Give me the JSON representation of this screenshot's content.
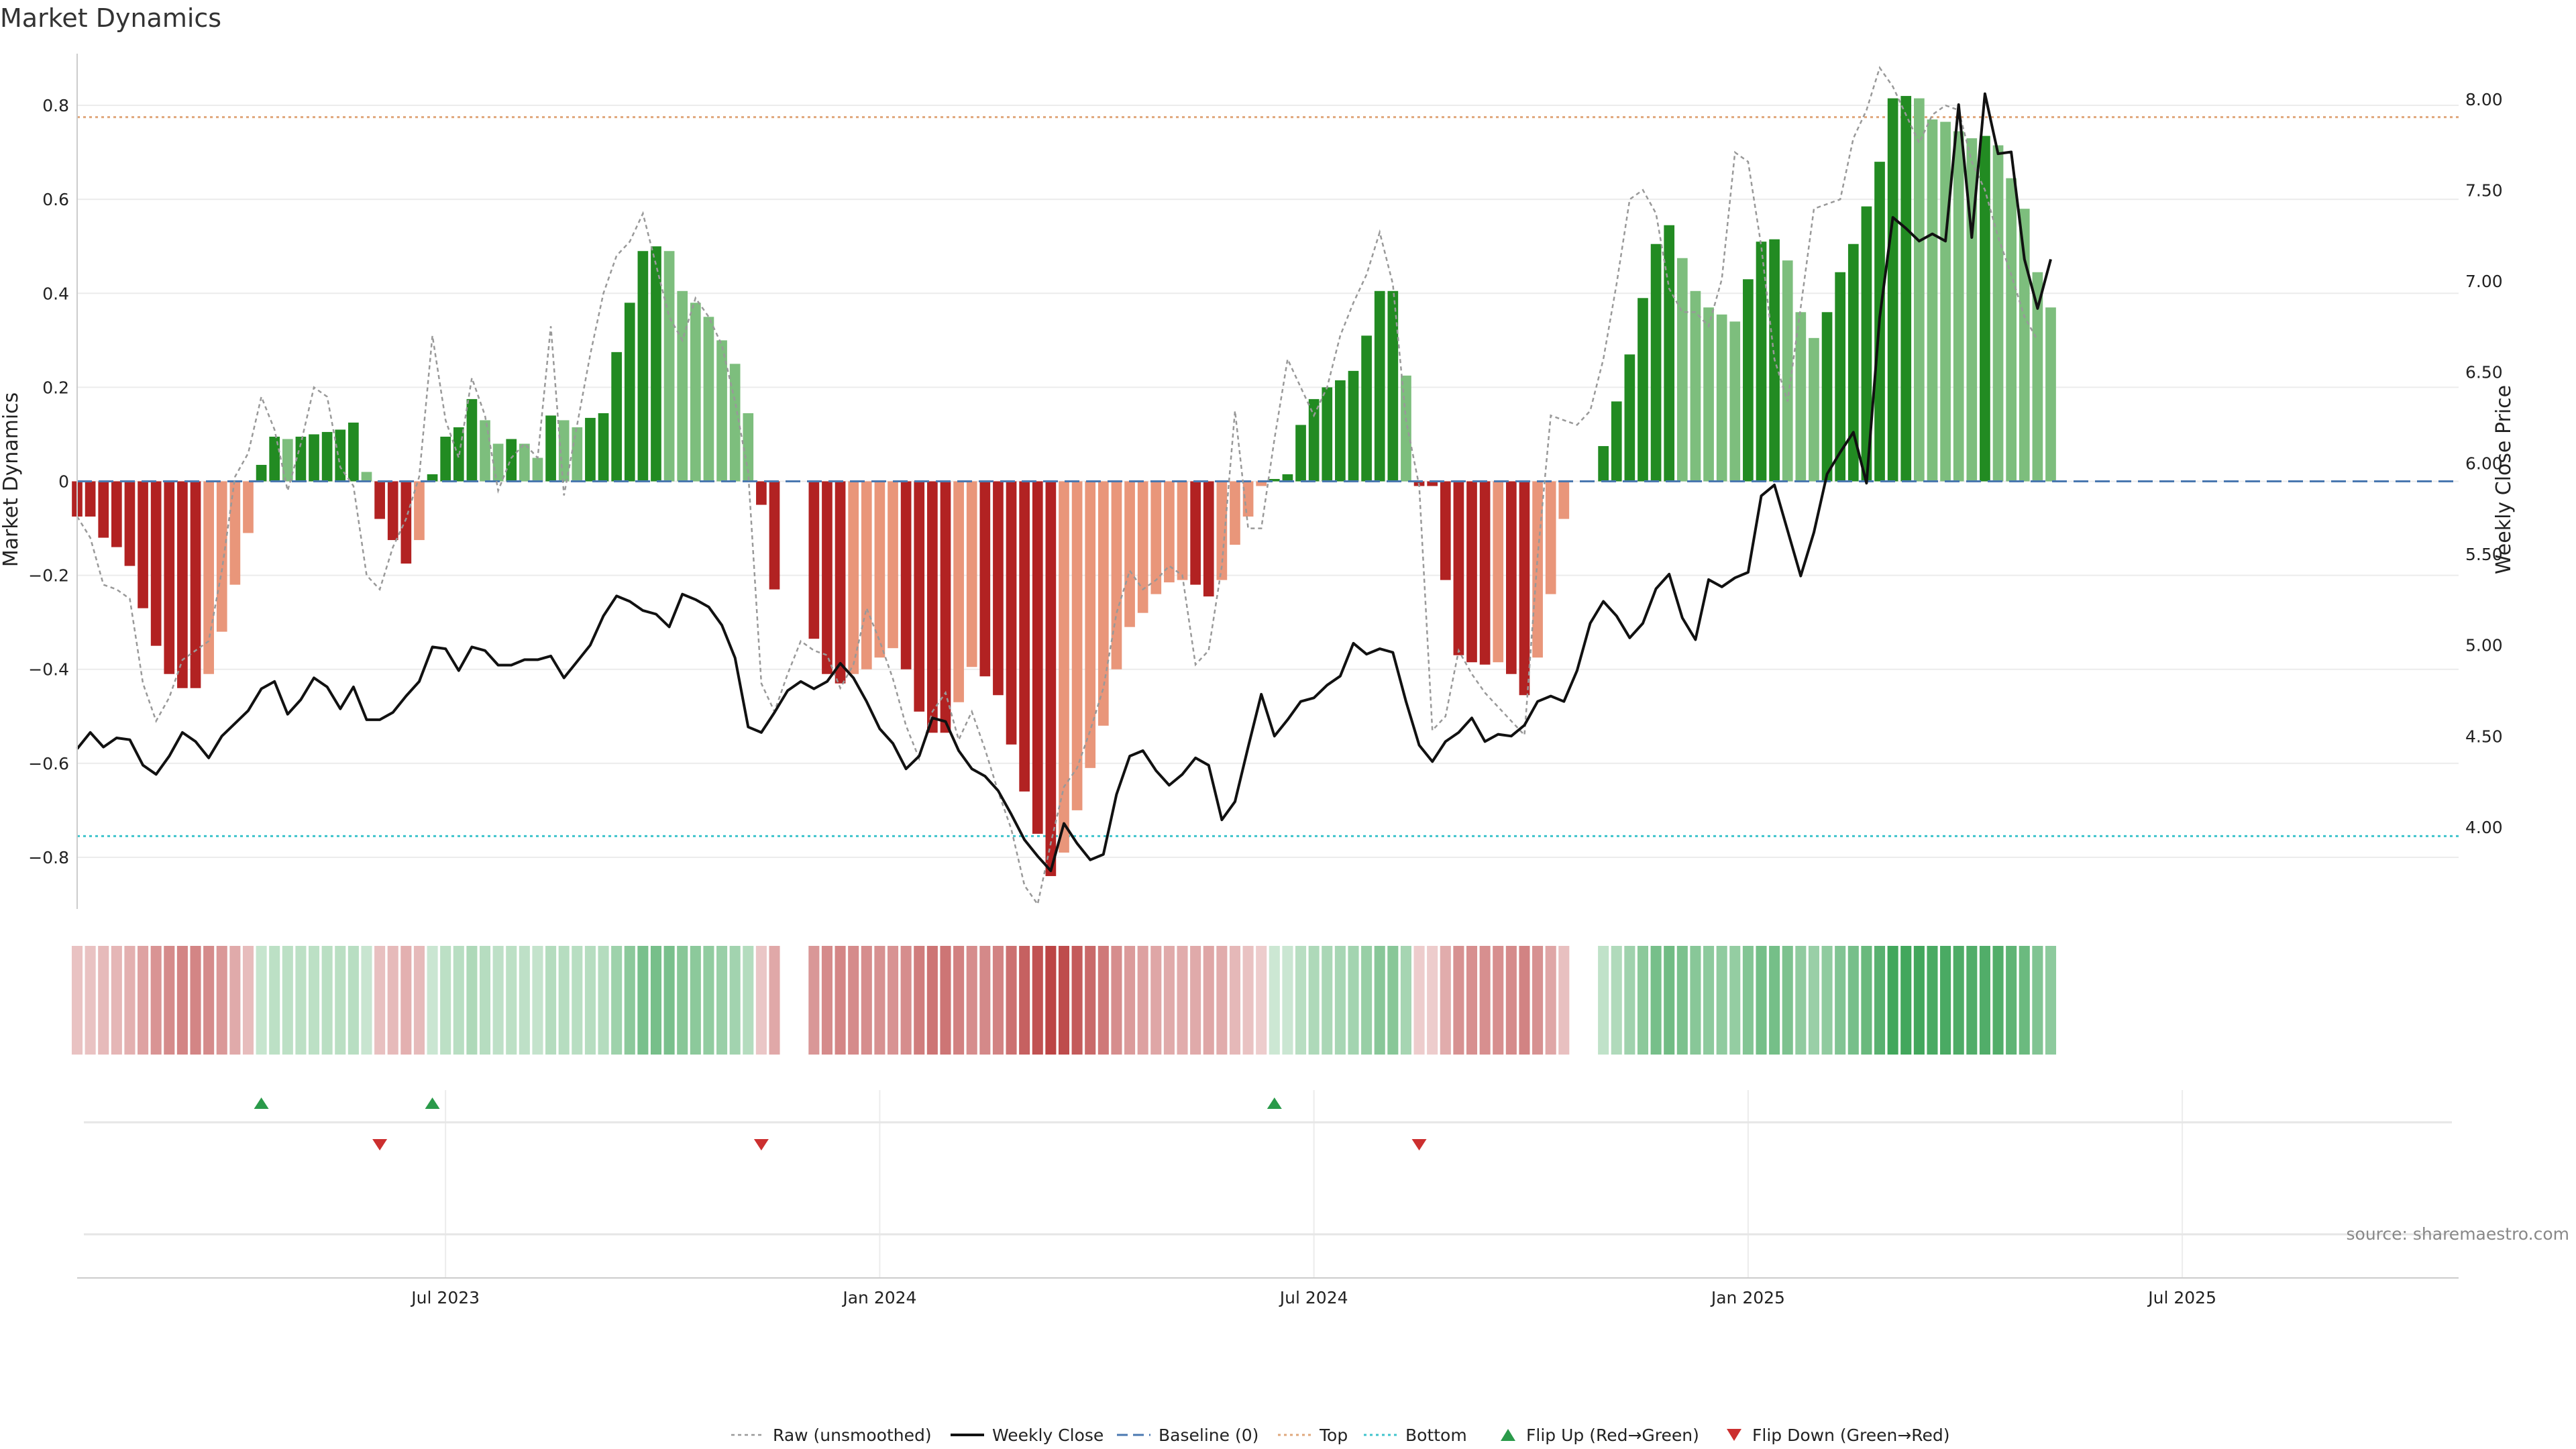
{
  "chart_data": {
    "type": "bar",
    "title": "Market Dynamics",
    "ylabel_left": "Market Dynamics",
    "ylabel_right": "Weekly Close Price",
    "ylim_left": [
      -0.91,
      0.91
    ],
    "ylim_right": [
      3.55,
      8.25
    ],
    "yticks_left": [
      0.8,
      0.6,
      0.4,
      0.2,
      0,
      -0.2,
      -0.4,
      -0.6,
      -0.8
    ],
    "ytick_labels_left": [
      "0.8",
      "0.6",
      "0.4",
      "0.2",
      "0",
      "−0.2",
      "−0.4",
      "−0.6",
      "−0.8"
    ],
    "yticks_right": [
      8.0,
      7.5,
      7.0,
      6.5,
      6.0,
      5.5,
      5.0,
      4.5,
      4.0
    ],
    "ytick_labels_right": [
      "8.00",
      "7.50",
      "7.00",
      "6.50",
      "6.00",
      "5.50",
      "5.00",
      "4.50",
      "4.00"
    ],
    "x_axis": {
      "start_week": 0,
      "weeks": 182
    },
    "xticks": [
      {
        "label": "Jul 2023",
        "week": 28
      },
      {
        "label": "Jan 2024",
        "week": 61
      },
      {
        "label": "Jul 2024",
        "week": 94
      },
      {
        "label": "Jan 2025",
        "week": 127
      },
      {
        "label": "Jul 2025",
        "week": 160
      }
    ],
    "top_threshold": 0.775,
    "bottom_threshold": -0.755,
    "baseline": 0,
    "bars": [
      -0.075,
      -0.075,
      -0.12,
      -0.14,
      -0.18,
      -0.27,
      -0.35,
      -0.41,
      -0.44,
      -0.44,
      -0.41,
      -0.32,
      -0.22,
      -0.11,
      0.035,
      0.095,
      0.09,
      0.095,
      0.1,
      0.105,
      0.11,
      0.125,
      0.02,
      -0.08,
      -0.125,
      -0.175,
      -0.125,
      0.015,
      0.095,
      0.115,
      0.175,
      0.13,
      0.08,
      0.09,
      0.08,
      0.05,
      0.14,
      0.13,
      0.115,
      0.135,
      0.145,
      0.275,
      0.38,
      0.49,
      0.5,
      0.49,
      0.405,
      0.38,
      0.35,
      0.3,
      0.25,
      0.145,
      -0.05,
      -0.23,
      0,
      0,
      -0.335,
      -0.41,
      -0.43,
      -0.41,
      -0.4,
      -0.375,
      -0.355,
      -0.4,
      -0.49,
      -0.535,
      -0.535,
      -0.47,
      -0.395,
      -0.415,
      -0.455,
      -0.56,
      -0.66,
      -0.75,
      -0.84,
      -0.79,
      -0.7,
      -0.61,
      -0.52,
      -0.4,
      -0.31,
      -0.28,
      -0.24,
      -0.215,
      -0.21,
      -0.22,
      -0.245,
      -0.21,
      -0.135,
      -0.075,
      -0.01,
      0.005,
      0.015,
      0.12,
      0.175,
      0.2,
      0.215,
      0.235,
      0.31,
      0.405,
      0.405,
      0.225,
      -0.01,
      -0.01,
      -0.21,
      -0.37,
      -0.385,
      -0.39,
      -0.385,
      -0.41,
      -0.455,
      -0.375,
      -0.24,
      -0.08,
      0,
      0,
      0.075,
      0.17,
      0.27,
      0.39,
      0.505,
      0.545,
      0.475,
      0.405,
      0.37,
      0.355,
      0.34,
      0.43,
      0.51,
      0.515,
      0.47,
      0.36,
      0.305,
      0.36,
      0.445,
      0.505,
      0.585,
      0.68,
      0.815,
      0.82,
      0.815,
      0.77,
      0.765,
      0.745,
      0.73,
      0.735,
      0.715,
      0.645,
      0.58,
      0.445,
      0.37
    ],
    "raw": [
      -0.075,
      -0.12,
      -0.22,
      -0.23,
      -0.25,
      -0.43,
      -0.51,
      -0.46,
      -0.38,
      -0.36,
      -0.34,
      -0.19,
      0.01,
      0.06,
      0.18,
      0.11,
      -0.02,
      0.08,
      0.2,
      0.18,
      0.03,
      -0.01,
      -0.2,
      -0.23,
      -0.14,
      -0.08,
      0.01,
      0.31,
      0.13,
      0.05,
      0.22,
      0.14,
      -0.02,
      0.05,
      0.08,
      0.05,
      0.33,
      -0.03,
      0.12,
      0.27,
      0.4,
      0.48,
      0.51,
      0.57,
      0.46,
      0.35,
      0.3,
      0.39,
      0.35,
      0.29,
      0.17,
      0.02,
      -0.43,
      -0.49,
      -0.41,
      -0.34,
      -0.36,
      -0.37,
      -0.44,
      -0.39,
      -0.27,
      -0.34,
      -0.42,
      -0.52,
      -0.59,
      -0.49,
      -0.45,
      -0.55,
      -0.49,
      -0.57,
      -0.66,
      -0.74,
      -0.86,
      -0.9,
      -0.77,
      -0.65,
      -0.61,
      -0.53,
      -0.44,
      -0.28,
      -0.19,
      -0.23,
      -0.21,
      -0.18,
      -0.2,
      -0.39,
      -0.36,
      -0.18,
      0.15,
      -0.1,
      -0.1,
      0.09,
      0.26,
      0.2,
      0.14,
      0.2,
      0.31,
      0.38,
      0.44,
      0.53,
      0.42,
      0.13,
      -0.01,
      -0.53,
      -0.5,
      -0.36,
      -0.41,
      -0.45,
      -0.48,
      -0.51,
      -0.54,
      -0.16,
      0.14,
      0.13,
      0.12,
      0.15,
      0.26,
      0.42,
      0.6,
      0.62,
      0.57,
      0.41,
      0.36,
      0.36,
      0.33,
      0.43,
      0.7,
      0.68,
      0.5,
      0.26,
      0.17,
      0.37,
      0.58,
      0.59,
      0.6,
      0.73,
      0.79,
      0.88,
      0.84,
      0.78,
      0.72,
      0.78,
      0.8,
      0.79,
      0.68,
      0.62,
      0.52,
      0.44,
      0.35,
      0.3
    ],
    "price": [
      4.43,
      4.52,
      4.44,
      4.49,
      4.48,
      4.34,
      4.29,
      4.39,
      4.52,
      4.47,
      4.38,
      4.5,
      4.57,
      4.64,
      4.76,
      4.8,
      4.62,
      4.7,
      4.82,
      4.77,
      4.65,
      4.77,
      4.59,
      4.59,
      4.63,
      4.72,
      4.8,
      4.99,
      4.98,
      4.86,
      4.99,
      4.97,
      4.89,
      4.89,
      4.92,
      4.92,
      4.94,
      4.82,
      4.91,
      5.0,
      5.16,
      5.27,
      5.24,
      5.19,
      5.17,
      5.1,
      5.28,
      5.25,
      5.21,
      5.11,
      4.93,
      4.55,
      4.52,
      4.63,
      4.75,
      4.8,
      4.76,
      4.8,
      4.9,
      4.82,
      4.69,
      4.54,
      4.46,
      4.32,
      4.39,
      4.6,
      4.58,
      4.42,
      4.32,
      4.28,
      4.2,
      4.07,
      3.93,
      3.84,
      3.76,
      4.02,
      3.91,
      3.82,
      3.85,
      4.18,
      4.39,
      4.42,
      4.31,
      4.23,
      4.29,
      4.38,
      4.34,
      4.04,
      4.14,
      4.44,
      4.73,
      4.5,
      4.59,
      4.69,
      4.71,
      4.78,
      4.83,
      5.01,
      4.95,
      4.98,
      4.96,
      4.69,
      4.45,
      4.36,
      4.47,
      4.52,
      4.6,
      4.47,
      4.51,
      4.5,
      4.56,
      4.69,
      4.72,
      4.69,
      4.86,
      5.12,
      5.24,
      5.16,
      5.04,
      5.12,
      5.31,
      5.39,
      5.15,
      5.03,
      5.36,
      5.32,
      5.37,
      5.4,
      5.82,
      5.88,
      5.63,
      5.38,
      5.62,
      5.94,
      6.06,
      6.17,
      5.89,
      6.8,
      7.35,
      7.29,
      7.22,
      7.26,
      7.22,
      7.97,
      7.24,
      8.03,
      7.7,
      7.71,
      7.12,
      6.85,
      7.12
    ]
  },
  "bar_colors": {
    "green_strong": "#228b22",
    "green_weak": "#7dbe7d",
    "red_strong": "#b22222",
    "red_weak": "#e9967a"
  },
  "legend": {
    "raw": "Raw (unsmoothed)",
    "close": "Weekly Close",
    "baseline": "Baseline (0)",
    "top": "Top",
    "bottom": "Bottom",
    "flip_up": "Flip Up (Red→Green)",
    "flip_down": "Flip Down (Green→Red)"
  },
  "source_text": "source: sharemaestro.com"
}
